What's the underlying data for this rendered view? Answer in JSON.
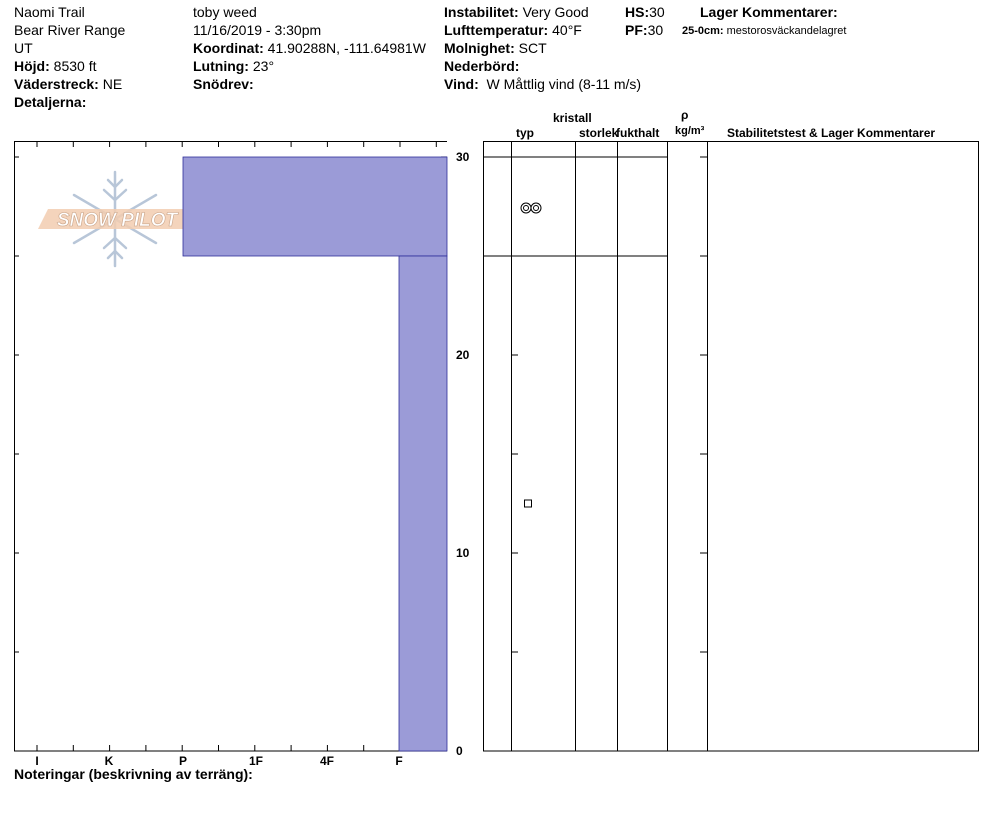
{
  "header": {
    "location": "Naomi Trail",
    "range": "Bear River Range",
    "state": "UT",
    "elevation_label": "Höjd:",
    "elevation_value": "8530 ft",
    "aspect_label": "Väderstreck:",
    "aspect_value": "NE",
    "details_label": "Detaljerna:",
    "observer": "toby weed",
    "datetime": "11/16/2019 - 3:30pm",
    "coord_label": "Koordinat:",
    "coord_value": "41.90288N, -111.64981W",
    "slope_label": "Lutning:",
    "slope_value": "23°",
    "drift_label": "Snödrev:",
    "stability_label": "Instabilitet:",
    "stability_value": "Very Good",
    "airtemp_label": "Lufttemperatur:",
    "airtemp_value": "40°F",
    "sky_label": "Molnighet:",
    "sky_value": "SCT",
    "precip_label": "Nederbörd:",
    "wind_label": "Vind:",
    "wind_value": "W Måttlig vind (8-11 m/s)",
    "hs_label": "HS:",
    "hs_value": "30",
    "pf_label": "PF:",
    "pf_value": "30",
    "layer_comments_label": "Lager Kommentarer:",
    "layer_comment_depth": "25-0cm:",
    "layer_comment_text": "mestorosväckandelagret"
  },
  "logo": {
    "text": "SNOW PILOT"
  },
  "table_headers": {
    "crystal": "kristall",
    "type": "typ",
    "size": "storlek",
    "moisture": "fukthalt",
    "rho": "ρ",
    "density_unit": "kg/m³",
    "comments": "Stabilitetstest & Lager Kommentarer"
  },
  "footer": {
    "notes_label": "Noteringar (beskrivning av terräng):"
  },
  "chart_data": {
    "type": "bar",
    "orientation": "horizontal",
    "x_categories": [
      "I",
      "K",
      "P",
      "1F",
      "4F",
      "F"
    ],
    "y_axis": {
      "range": [
        0,
        30
      ],
      "tick_labels": [
        0,
        10,
        20,
        30
      ],
      "unit": "cm"
    },
    "layers": [
      {
        "top": 30,
        "bottom": 25,
        "hardness": "P",
        "grain": "rounding-faceted",
        "grain_symbol": "⦾⦾"
      },
      {
        "top": 25,
        "bottom": 0,
        "hardness": "F",
        "grain": "faceted",
        "grain_symbol": "□"
      }
    ],
    "bar_color": "#9b9bd7",
    "grid": false
  }
}
